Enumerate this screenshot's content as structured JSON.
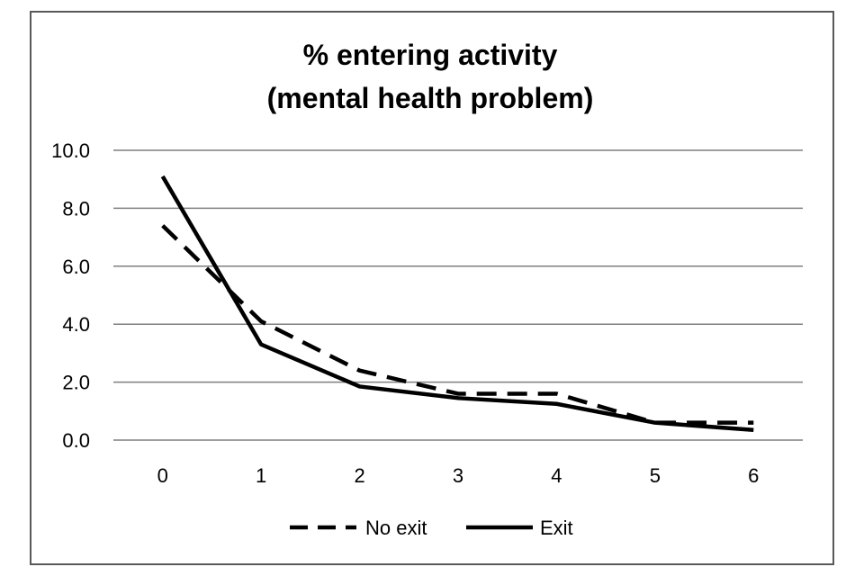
{
  "chart_data": {
    "type": "line",
    "title": "% entering activity",
    "subtitle": "(mental health problem)",
    "categories": [
      "0",
      "1",
      "2",
      "3",
      "4",
      "5",
      "6"
    ],
    "series": [
      {
        "name": "No exit",
        "style": "dashed",
        "color": "#000000",
        "values": [
          7.4,
          4.1,
          2.4,
          1.6,
          1.6,
          0.6,
          0.6
        ]
      },
      {
        "name": "Exit",
        "style": "solid",
        "color": "#000000",
        "values": [
          9.1,
          3.3,
          1.85,
          1.45,
          1.25,
          0.6,
          0.35
        ]
      }
    ],
    "yticks": [
      "0.0",
      "2.0",
      "4.0",
      "6.0",
      "8.0",
      "10.0"
    ],
    "ylim": [
      0,
      10
    ],
    "grid": "horizontal",
    "legend": "bottom"
  }
}
